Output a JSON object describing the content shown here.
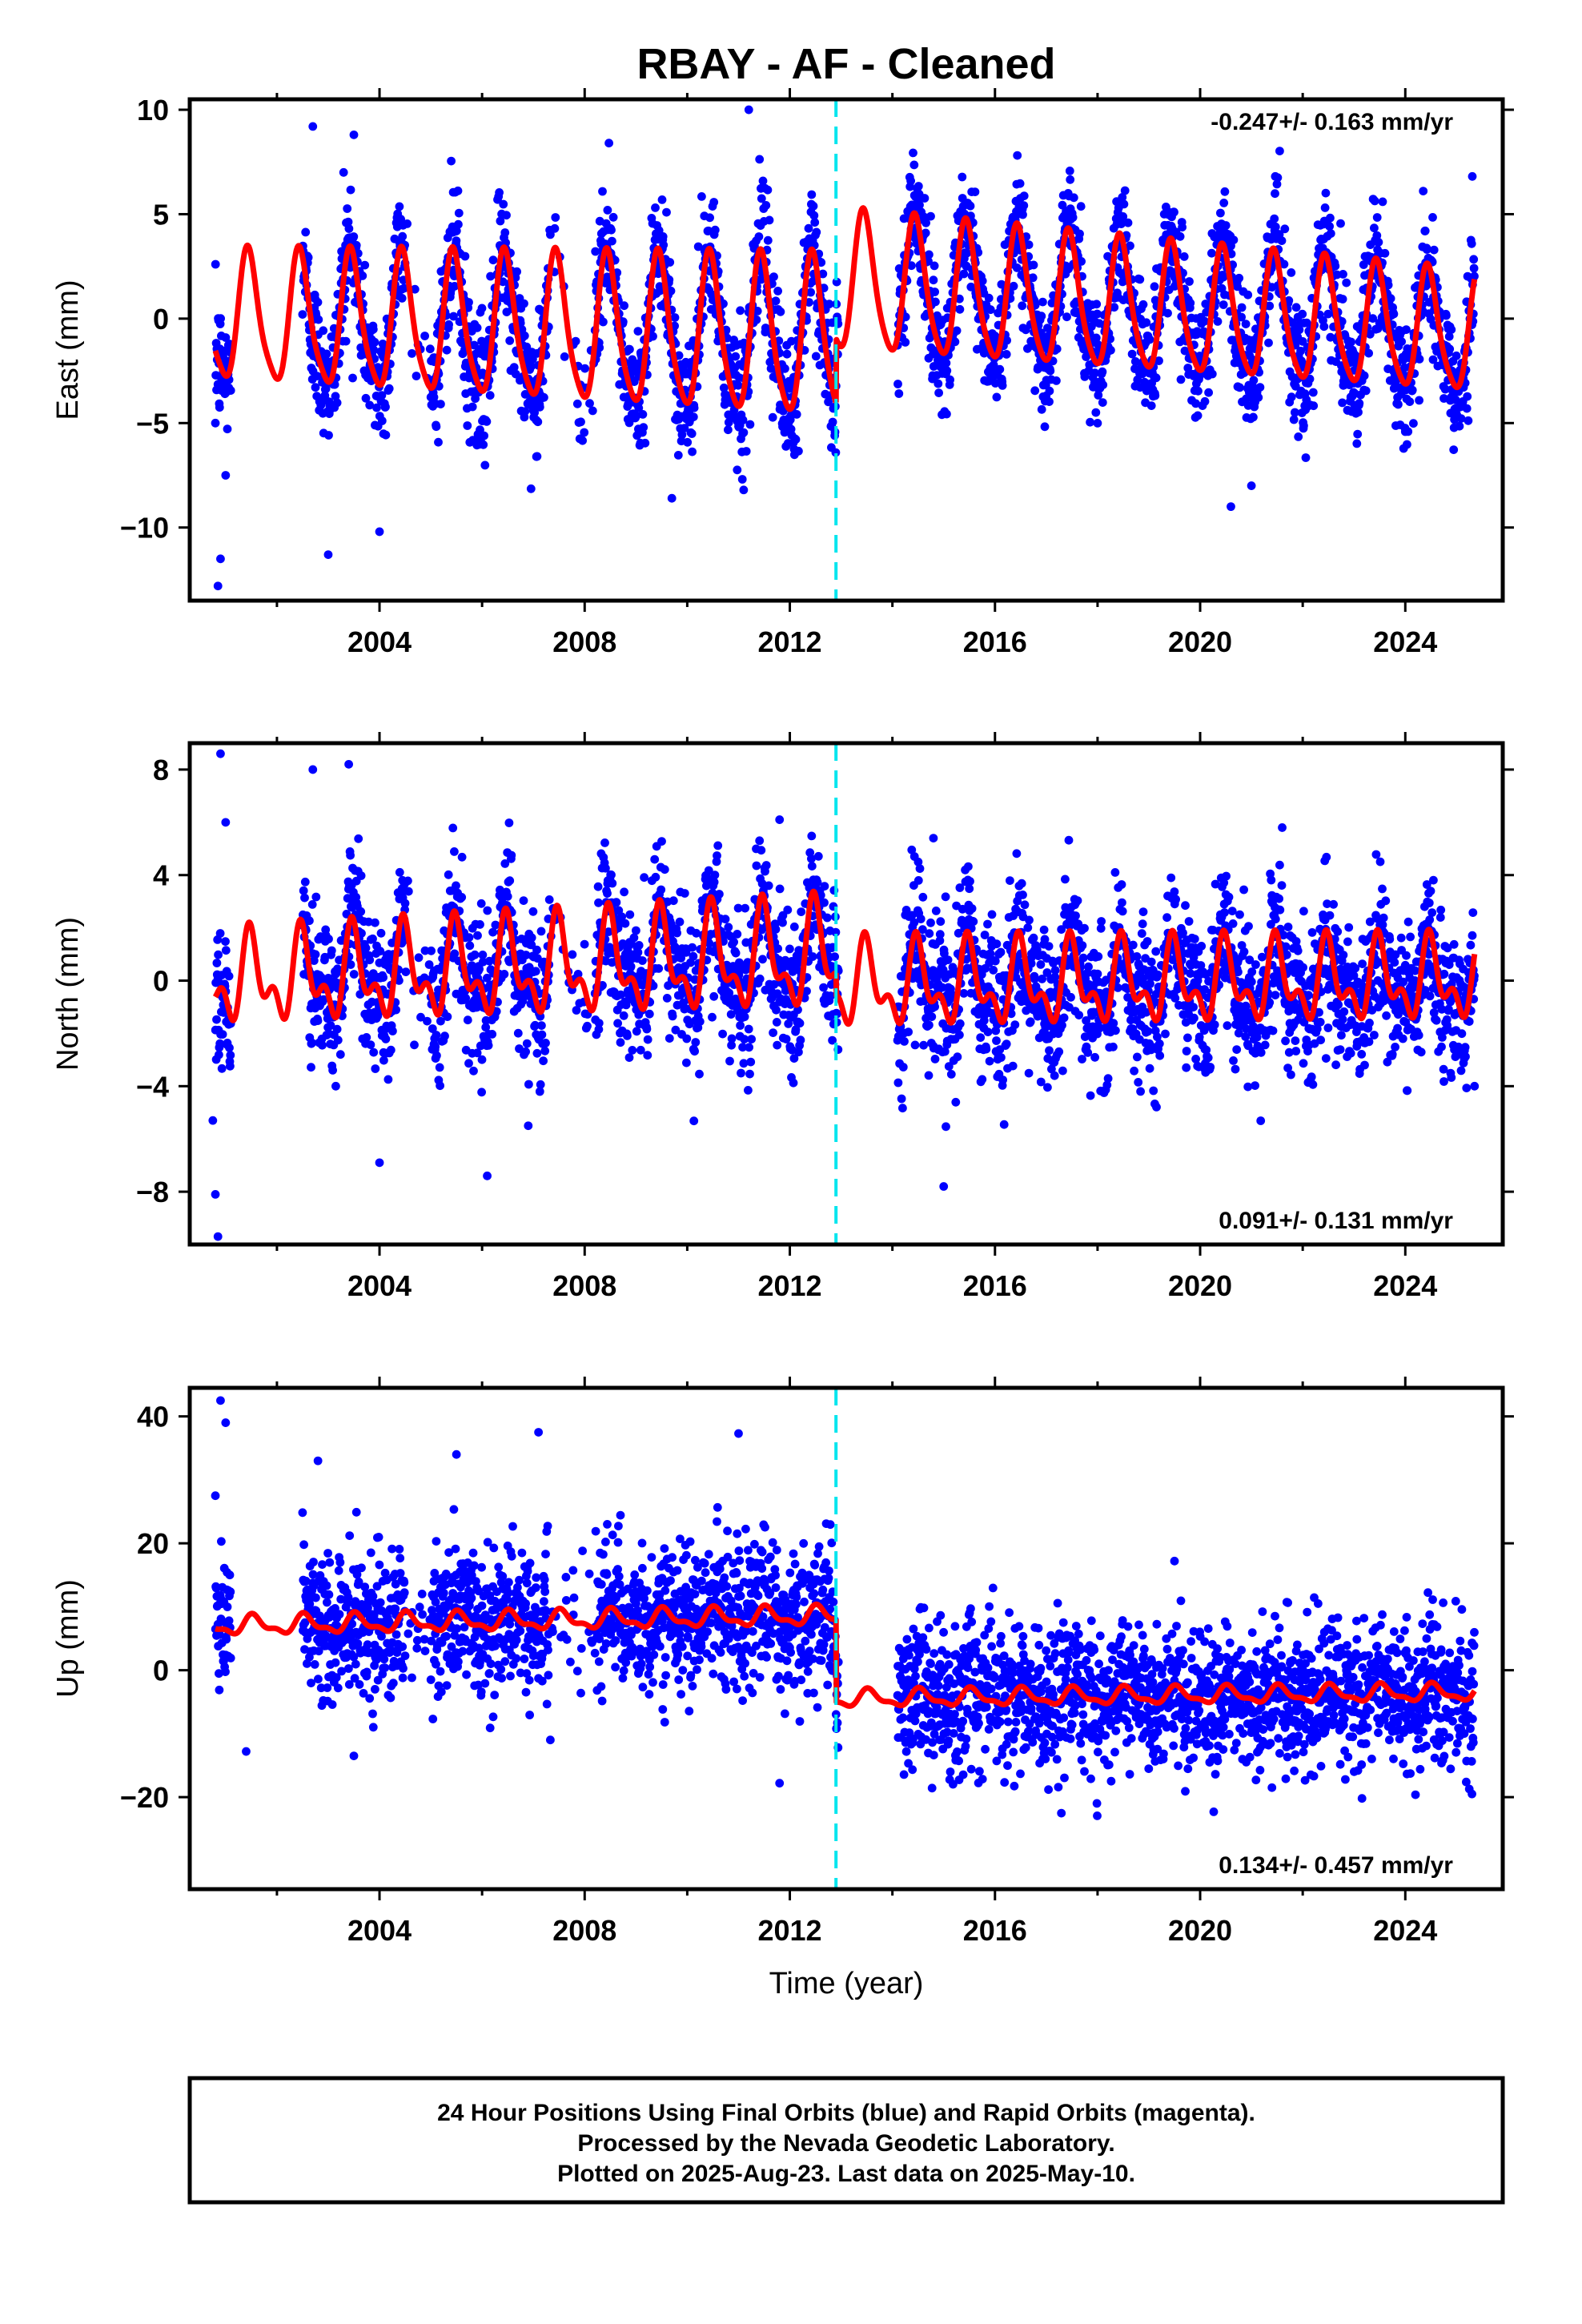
{
  "title": "RBAY  - AF - Cleaned",
  "xlabel": "Time (year)",
  "footer": [
    "24 Hour Positions Using Final Orbits (blue) and Rapid Orbits (magenta).",
    "Processed by the Nevada Geodetic Laboratory.",
    "Plotted on 2025-Aug-23. Last data on 2025-May-10."
  ],
  "colors": {
    "points": "#0000ff",
    "model": "#ff0000",
    "offset_line": "#00e5ee",
    "frame": "#000000"
  },
  "chart_data": [
    {
      "type": "scatter",
      "name": "east",
      "ylabel": "East (mm)",
      "rate_label": "-0.247+/- 0.163 mm/yr",
      "rate_position": "top-right",
      "xlim": [
        2000.3,
        2025.9
      ],
      "ylim": [
        -13.5,
        10.5
      ],
      "xticks": [
        2004,
        2008,
        2012,
        2016,
        2020,
        2024
      ],
      "yticks": [
        -10,
        -5,
        0,
        5,
        10
      ],
      "yticklabels": [
        "−10",
        "−5",
        "0",
        "5",
        "10"
      ],
      "grid": false,
      "offset_year": 2012.9,
      "model": {
        "segments": [
          {
            "start": 2000.8,
            "end": 2012.9,
            "level_start": 0.0,
            "level_end": -1.0,
            "annual_amp": 3.0,
            "annual_amp_end": 3.8,
            "semiannual_amp": 0.6
          },
          {
            "start": 2012.9,
            "end": 2025.35,
            "level_start": 1.7,
            "level_end": -0.8,
            "annual_amp": 3.3,
            "annual_amp_end": 2.8,
            "semiannual_amp": 0.5
          }
        ],
        "annual_peak_phase": 0.45
      },
      "scatter_estimate": {
        "coverage": [
          [
            2000.75,
            2001.1
          ],
          [
            2002.5,
            2012.95
          ],
          [
            2014.1,
            2025.35
          ]
        ],
        "sparse_gaps": [
          [
            2004.5,
            2005.0
          ],
          [
            2007.3,
            2008.2
          ]
        ],
        "noise_sd": 1.5,
        "outliers": [
          [
            2000.85,
            -12.8
          ],
          [
            2000.9,
            -11.5
          ],
          [
            2001.0,
            -7.5
          ],
          [
            2000.8,
            -5.0
          ],
          [
            2002.7,
            9.2
          ],
          [
            2003.3,
            7.0
          ],
          [
            2003.5,
            8.8
          ],
          [
            2011.2,
            10.0
          ],
          [
            2004.0,
            -10.2
          ],
          [
            2020.6,
            -9.0
          ],
          [
            2021.0,
            -8.0
          ],
          [
            2009.7,
            -8.6
          ],
          [
            2011.1,
            -8.2
          ],
          [
            2003.0,
            -11.3
          ]
        ]
      }
    },
    {
      "type": "scatter",
      "name": "north",
      "ylabel": "North (mm)",
      "rate_label": "0.091+/- 0.131 mm/yr",
      "rate_position": "bottom-right",
      "xlim": [
        2000.3,
        2025.9
      ],
      "ylim": [
        -10.0,
        9.0
      ],
      "xticks": [
        2004,
        2008,
        2012,
        2016,
        2020,
        2024
      ],
      "yticks": [
        -8,
        -4,
        0,
        4,
        8
      ],
      "yticklabels": [
        "−8",
        "−4",
        "0",
        "4",
        "8"
      ],
      "grid": false,
      "offset_year": 2012.9,
      "model": {
        "segments": [
          {
            "start": 2000.8,
            "end": 2012.9,
            "level_start": 0.0,
            "level_end": 0.9,
            "annual_amp": 1.3,
            "annual_amp_end": 1.7,
            "semiannual_amp": 0.9
          },
          {
            "start": 2012.9,
            "end": 2025.35,
            "level_start": -0.2,
            "level_end": 0.0,
            "annual_amp": 1.3,
            "annual_amp_end": 1.2,
            "semiannual_amp": 0.8
          }
        ],
        "annual_peak_phase": 0.5
      },
      "scatter_estimate": {
        "coverage": [
          [
            2000.75,
            2001.1
          ],
          [
            2002.5,
            2012.95
          ],
          [
            2014.1,
            2025.35
          ]
        ],
        "sparse_gaps": [
          [
            2004.5,
            2005.0
          ],
          [
            2007.3,
            2008.2
          ]
        ],
        "noise_sd": 1.4,
        "outliers": [
          [
            2000.85,
            -9.7
          ],
          [
            2000.8,
            -8.1
          ],
          [
            2000.75,
            -5.3
          ],
          [
            2000.9,
            8.6
          ],
          [
            2001.0,
            6.0
          ],
          [
            2002.7,
            8.0
          ],
          [
            2003.4,
            8.2
          ],
          [
            2004.0,
            -6.9
          ],
          [
            2006.1,
            -7.4
          ],
          [
            2015.0,
            -7.8
          ],
          [
            2014.8,
            5.4
          ],
          [
            2021.6,
            5.8
          ],
          [
            2025.35,
            -4.0
          ],
          [
            2011.8,
            6.1
          ],
          [
            2006.9,
            -5.5
          ]
        ]
      }
    },
    {
      "type": "scatter",
      "name": "up",
      "ylabel": "Up (mm)",
      "rate_label": "0.134+/- 0.457 mm/yr",
      "rate_position": "bottom-right",
      "xlim": [
        2000.3,
        2025.9
      ],
      "ylim": [
        -34.5,
        44.5
      ],
      "xticks": [
        2004,
        2008,
        2012,
        2016,
        2020,
        2024
      ],
      "yticks": [
        -20,
        0,
        20,
        40
      ],
      "yticklabels": [
        "−20",
        "0",
        "20",
        "40"
      ],
      "grid": false,
      "offset_year": 2012.9,
      "model": {
        "segments": [
          {
            "start": 2000.8,
            "end": 2012.9,
            "level_start": 7.0,
            "level_end": 8.6,
            "annual_amp": 1.3,
            "annual_amp_end": 1.3,
            "semiannual_amp": 0.6
          },
          {
            "start": 2012.9,
            "end": 2025.35,
            "level_start": -4.5,
            "level_end": -3.5,
            "annual_amp": 1.2,
            "annual_amp_end": 1.2,
            "semiannual_amp": 0.5
          }
        ],
        "annual_peak_phase": 0.55
      },
      "scatter_estimate": {
        "coverage": [
          [
            2000.75,
            2001.1
          ],
          [
            2002.5,
            2012.95
          ],
          [
            2014.1,
            2025.35
          ]
        ],
        "sparse_gaps": [
          [
            2004.5,
            2005.0
          ],
          [
            2007.3,
            2008.2
          ]
        ],
        "noise_sd": 5.5,
        "outliers": [
          [
            2000.9,
            42.5
          ],
          [
            2001.0,
            39.0
          ],
          [
            2000.8,
            27.5
          ],
          [
            2002.8,
            33.0
          ],
          [
            2005.5,
            34.0
          ],
          [
            2007.1,
            37.5
          ],
          [
            2011.0,
            37.3
          ],
          [
            2001.4,
            -12.8
          ],
          [
            2011.8,
            -17.8
          ],
          [
            2019.5,
            17.2
          ],
          [
            2022.3,
            10.5
          ],
          [
            2003.5,
            -13.5
          ],
          [
            2021.4,
            -18.5
          ],
          [
            2025.3,
            -19.5
          ]
        ]
      }
    }
  ]
}
